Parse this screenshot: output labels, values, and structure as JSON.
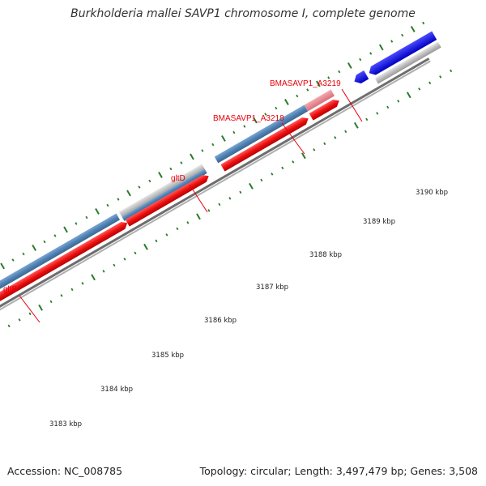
{
  "title": "Burkholderia mallei SAVP1 chromosome I, complete genome",
  "footer": {
    "accession": "Accession: NC_008785",
    "summary": "Topology: circular; Length: 3,497,479 bp; Genes: 3,508"
  },
  "colors": {
    "cds_forward": "#ee1111",
    "cds_reverse": "#0000ee",
    "gene_blue": "#4f82b4",
    "gene_pink": "#e88088",
    "gene_gray": "#b8b8b8",
    "backbone": "#8a8a8a",
    "tick": "#2a7a2a",
    "label_red": "#e8000b"
  },
  "genes": [
    {
      "name": "gltB"
    },
    {
      "name": "gltD"
    },
    {
      "name": "BMASAVP1_A3218"
    },
    {
      "name": "BMASAVP1_A3219"
    }
  ],
  "ruler": {
    "labels": [
      "3183 kbp",
      "3184 kbp",
      "3185 kbp",
      "3186 kbp",
      "3187 kbp",
      "3188 kbp",
      "3189 kbp",
      "3190 kbp"
    ]
  }
}
